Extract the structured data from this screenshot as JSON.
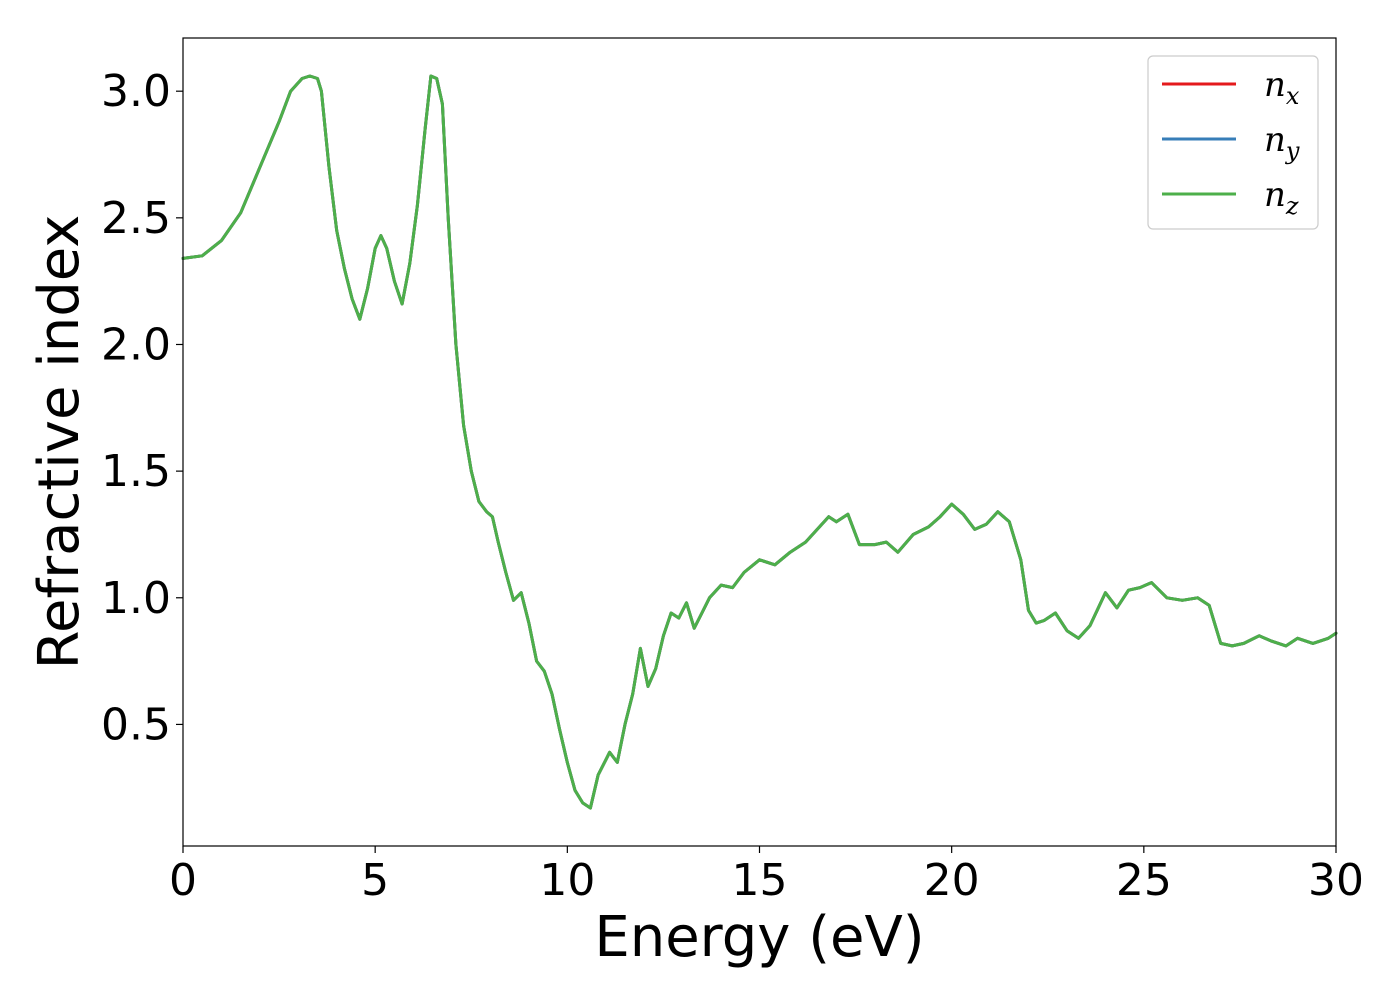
{
  "chart_data": {
    "type": "line",
    "title": "",
    "xlabel": "Energy (eV)",
    "ylabel": "Refractive index",
    "xlim": [
      0,
      30
    ],
    "ylim": [
      0.02,
      3.21
    ],
    "xticks": [
      "0",
      "5",
      "10",
      "15",
      "20",
      "25",
      "30"
    ],
    "yticks": [
      "0.5",
      "1.0",
      "1.5",
      "2.0",
      "2.5",
      "3.0"
    ],
    "grid": false,
    "legend_position": "top-right",
    "x": [
      0,
      0.5,
      1,
      1.5,
      2,
      2.5,
      2.8,
      3.1,
      3.3,
      3.5,
      3.6,
      3.8,
      4.0,
      4.2,
      4.4,
      4.6,
      4.8,
      5.0,
      5.15,
      5.3,
      5.5,
      5.7,
      5.9,
      6.1,
      6.3,
      6.45,
      6.6,
      6.75,
      6.9,
      7.1,
      7.3,
      7.5,
      7.7,
      7.9,
      8.05,
      8.2,
      8.4,
      8.6,
      8.8,
      9.0,
      9.2,
      9.4,
      9.6,
      9.8,
      10.0,
      10.2,
      10.4,
      10.6,
      10.8,
      11.0,
      11.1,
      11.3,
      11.5,
      11.7,
      11.9,
      12.1,
      12.3,
      12.5,
      12.7,
      12.9,
      13.1,
      13.3,
      13.5,
      13.7,
      14.0,
      14.3,
      14.6,
      15.0,
      15.4,
      15.8,
      16.2,
      16.5,
      16.8,
      17.0,
      17.3,
      17.6,
      18.0,
      18.3,
      18.6,
      19.0,
      19.4,
      19.7,
      20.0,
      20.3,
      20.6,
      20.9,
      21.2,
      21.5,
      21.8,
      22.0,
      22.2,
      22.4,
      22.7,
      23.0,
      23.3,
      23.6,
      24.0,
      24.3,
      24.6,
      24.9,
      25.2,
      25.6,
      26.0,
      26.4,
      26.7,
      27.0,
      27.3,
      27.6,
      28.0,
      28.3,
      28.7,
      29.0,
      29.4,
      29.8,
      30.0
    ],
    "series": [
      {
        "name": "n_x",
        "label_base": "n",
        "label_sub": "x",
        "color": "#e41a1c",
        "values": [
          2.34,
          2.35,
          2.41,
          2.52,
          2.7,
          2.88,
          3.0,
          3.05,
          3.06,
          3.05,
          3.0,
          2.7,
          2.45,
          2.3,
          2.18,
          2.1,
          2.22,
          2.38,
          2.43,
          2.38,
          2.25,
          2.16,
          2.32,
          2.55,
          2.85,
          3.06,
          3.05,
          2.95,
          2.5,
          2.0,
          1.68,
          1.5,
          1.38,
          1.34,
          1.32,
          1.22,
          1.1,
          0.99,
          1.02,
          0.9,
          0.75,
          0.71,
          0.62,
          0.48,
          0.35,
          0.24,
          0.19,
          0.17,
          0.3,
          0.36,
          0.39,
          0.35,
          0.5,
          0.62,
          0.8,
          0.65,
          0.72,
          0.85,
          0.94,
          0.92,
          0.98,
          0.88,
          0.94,
          1.0,
          1.05,
          1.04,
          1.1,
          1.15,
          1.13,
          1.18,
          1.22,
          1.27,
          1.32,
          1.3,
          1.33,
          1.21,
          1.21,
          1.22,
          1.18,
          1.25,
          1.28,
          1.32,
          1.37,
          1.33,
          1.27,
          1.29,
          1.34,
          1.3,
          1.15,
          0.95,
          0.9,
          0.91,
          0.94,
          0.87,
          0.84,
          0.89,
          1.02,
          0.96,
          1.03,
          1.04,
          1.06,
          1.0,
          0.99,
          1.0,
          0.97,
          0.82,
          0.81,
          0.82,
          0.85,
          0.83,
          0.81,
          0.84,
          0.82,
          0.84,
          0.86
        ]
      },
      {
        "name": "n_y",
        "label_base": "n",
        "label_sub": "y",
        "color": "#377eb8",
        "values": [
          2.34,
          2.35,
          2.41,
          2.52,
          2.7,
          2.88,
          3.0,
          3.05,
          3.06,
          3.05,
          3.0,
          2.7,
          2.45,
          2.3,
          2.18,
          2.1,
          2.22,
          2.38,
          2.43,
          2.38,
          2.25,
          2.16,
          2.32,
          2.55,
          2.85,
          3.06,
          3.05,
          2.95,
          2.5,
          2.0,
          1.68,
          1.5,
          1.38,
          1.34,
          1.32,
          1.22,
          1.1,
          0.99,
          1.02,
          0.9,
          0.75,
          0.71,
          0.62,
          0.48,
          0.35,
          0.24,
          0.19,
          0.17,
          0.3,
          0.36,
          0.39,
          0.35,
          0.5,
          0.62,
          0.8,
          0.65,
          0.72,
          0.85,
          0.94,
          0.92,
          0.98,
          0.88,
          0.94,
          1.0,
          1.05,
          1.04,
          1.1,
          1.15,
          1.13,
          1.18,
          1.22,
          1.27,
          1.32,
          1.3,
          1.33,
          1.21,
          1.21,
          1.22,
          1.18,
          1.25,
          1.28,
          1.32,
          1.37,
          1.33,
          1.27,
          1.29,
          1.34,
          1.3,
          1.15,
          0.95,
          0.9,
          0.91,
          0.94,
          0.87,
          0.84,
          0.89,
          1.02,
          0.96,
          1.03,
          1.04,
          1.06,
          1.0,
          0.99,
          1.0,
          0.97,
          0.82,
          0.81,
          0.82,
          0.85,
          0.83,
          0.81,
          0.84,
          0.82,
          0.84,
          0.86
        ]
      },
      {
        "name": "n_z",
        "label_base": "n",
        "label_sub": "z",
        "color": "#4daf4a",
        "values": [
          2.34,
          2.35,
          2.41,
          2.52,
          2.7,
          2.88,
          3.0,
          3.05,
          3.06,
          3.05,
          3.0,
          2.7,
          2.45,
          2.3,
          2.18,
          2.1,
          2.22,
          2.38,
          2.43,
          2.38,
          2.25,
          2.16,
          2.32,
          2.55,
          2.85,
          3.06,
          3.05,
          2.95,
          2.5,
          2.0,
          1.68,
          1.5,
          1.38,
          1.34,
          1.32,
          1.22,
          1.1,
          0.99,
          1.02,
          0.9,
          0.75,
          0.71,
          0.62,
          0.48,
          0.35,
          0.24,
          0.19,
          0.17,
          0.3,
          0.36,
          0.39,
          0.35,
          0.5,
          0.62,
          0.8,
          0.65,
          0.72,
          0.85,
          0.94,
          0.92,
          0.98,
          0.88,
          0.94,
          1.0,
          1.05,
          1.04,
          1.1,
          1.15,
          1.13,
          1.18,
          1.22,
          1.27,
          1.32,
          1.3,
          1.33,
          1.21,
          1.21,
          1.22,
          1.18,
          1.25,
          1.28,
          1.32,
          1.37,
          1.33,
          1.27,
          1.29,
          1.34,
          1.3,
          1.15,
          0.95,
          0.9,
          0.91,
          0.94,
          0.87,
          0.84,
          0.89,
          1.02,
          0.96,
          1.03,
          1.04,
          1.06,
          1.0,
          0.99,
          1.0,
          0.97,
          0.82,
          0.81,
          0.82,
          0.85,
          0.83,
          0.81,
          0.84,
          0.82,
          0.84,
          0.86
        ]
      }
    ]
  }
}
